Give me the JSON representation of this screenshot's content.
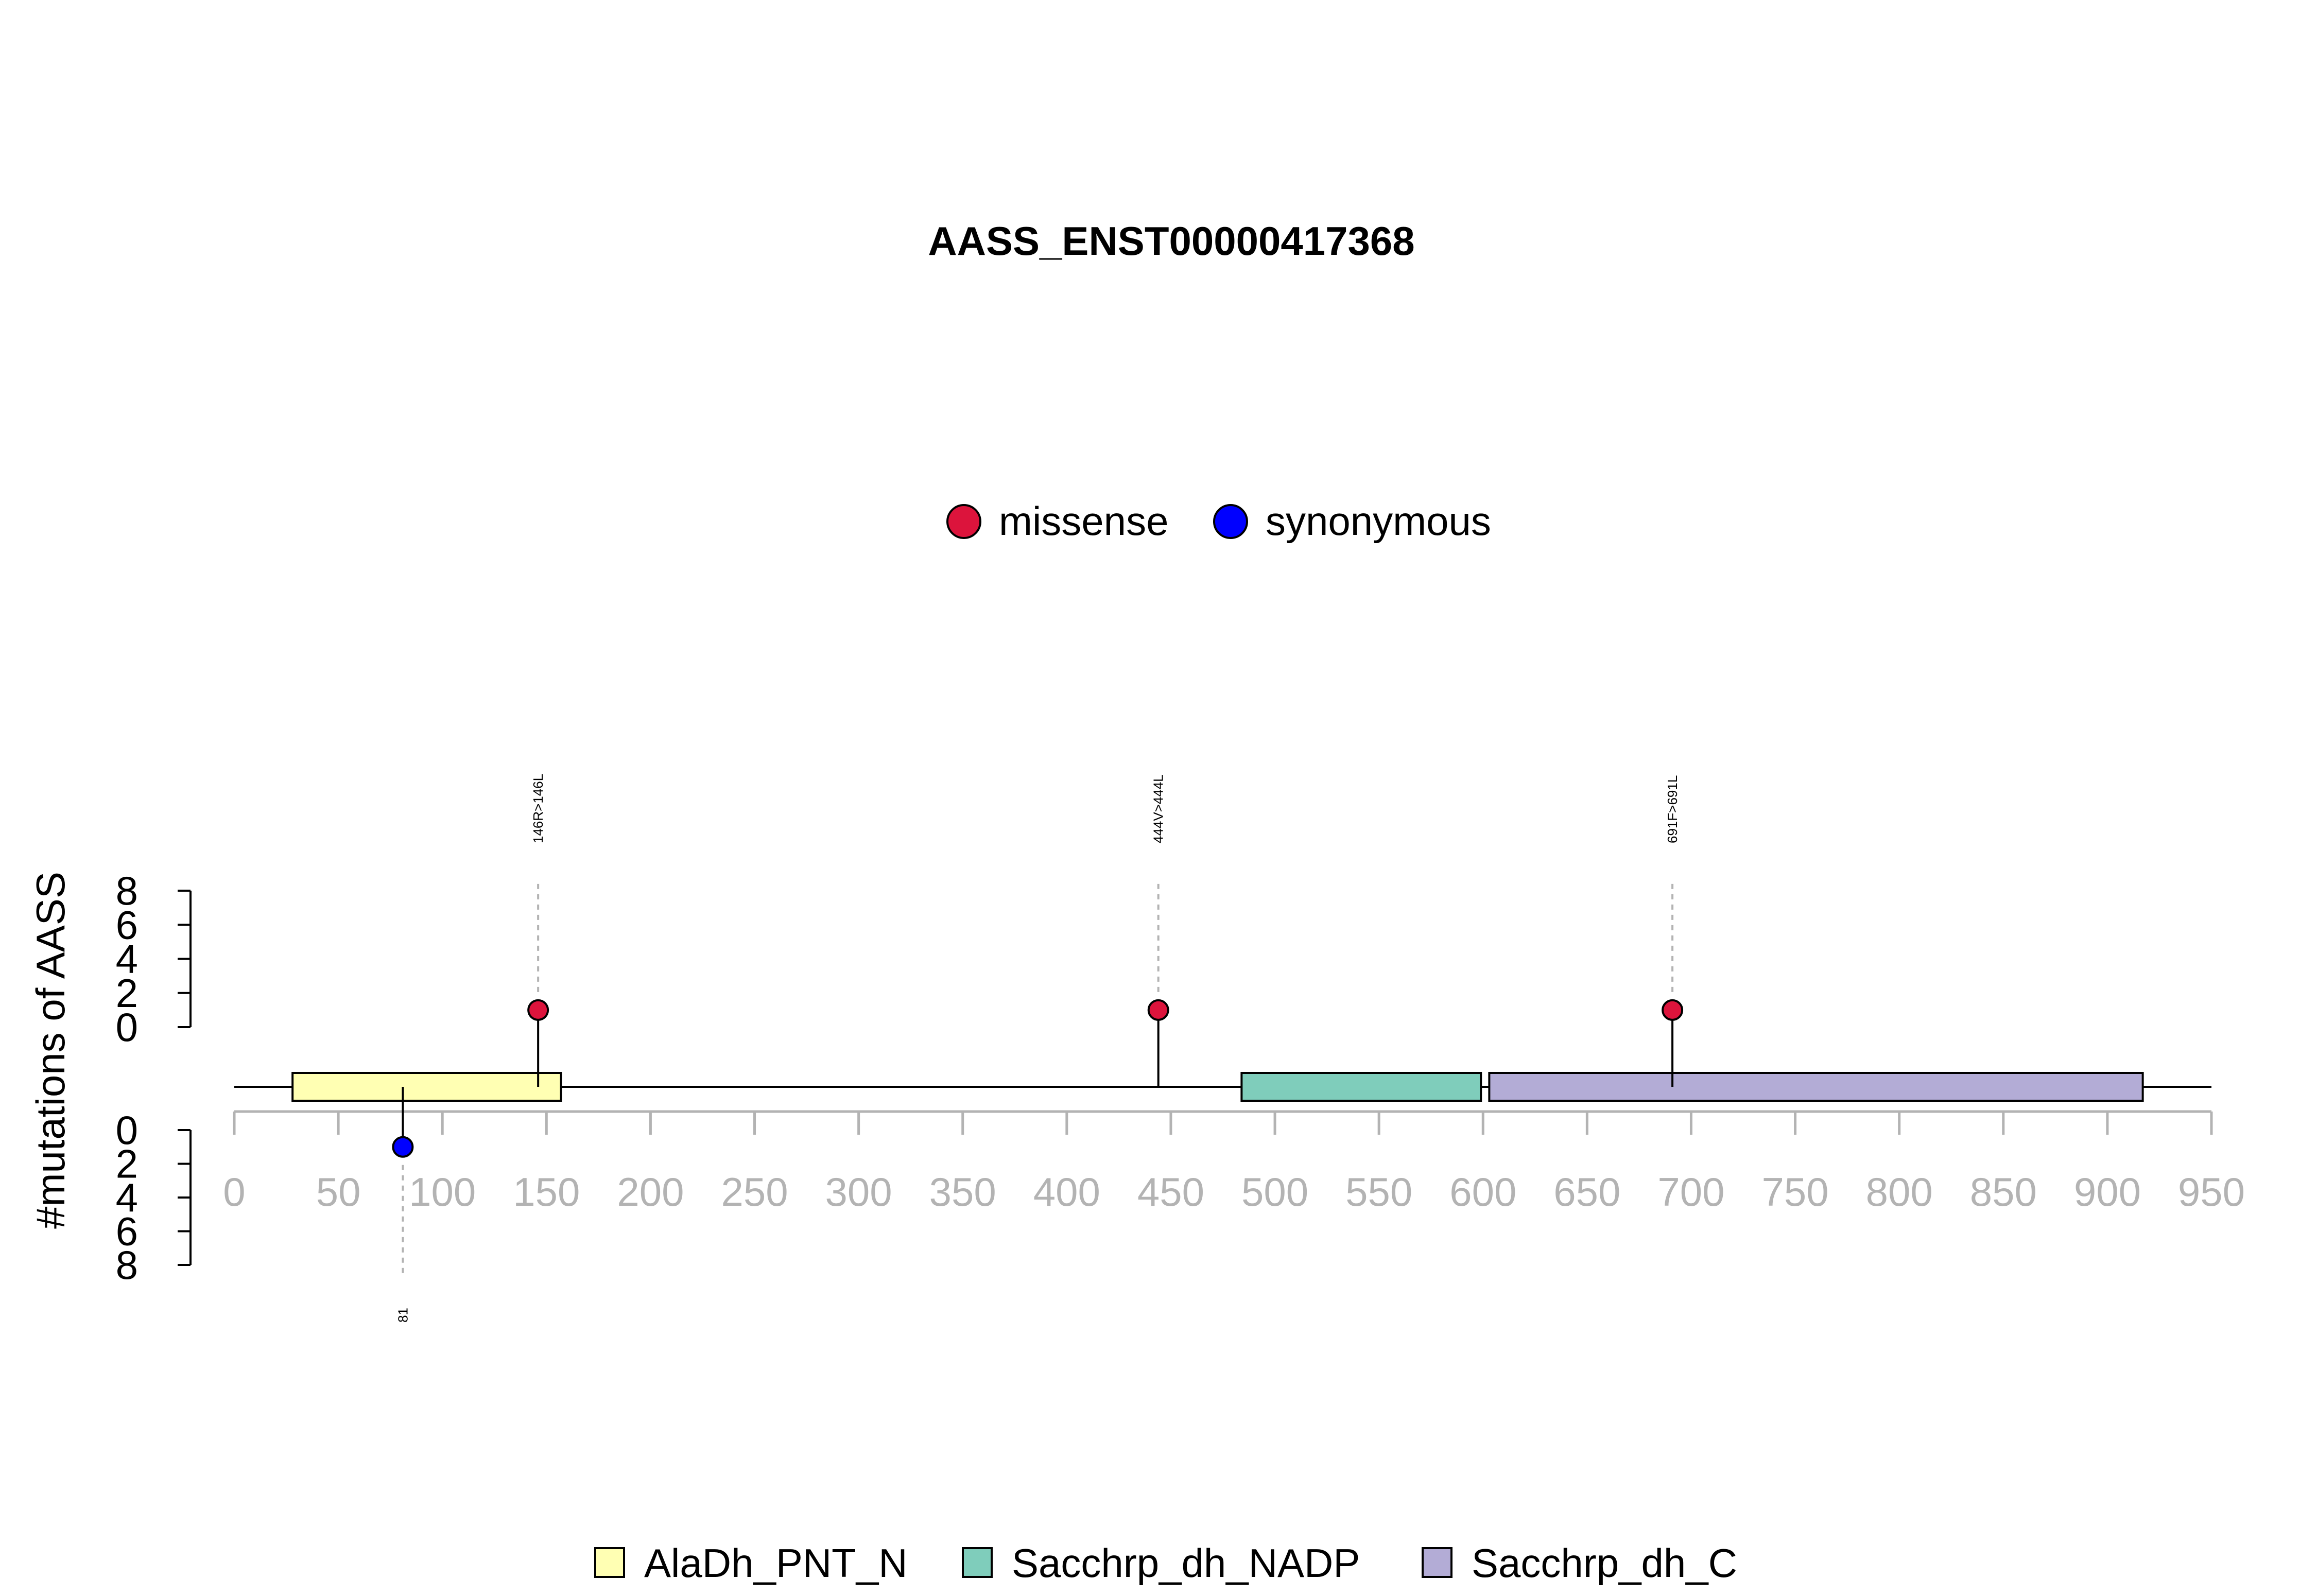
{
  "chart_data": {
    "type": "lollipop",
    "title": "AASS_ENST00000417368",
    "ylabel": "#mutations of AASS",
    "xlim": [
      0,
      950
    ],
    "x_ticks": [
      0,
      50,
      100,
      150,
      200,
      250,
      300,
      350,
      400,
      450,
      500,
      550,
      600,
      650,
      700,
      750,
      800,
      850,
      900,
      950
    ],
    "y_ticks": [
      0,
      2,
      4,
      6,
      8
    ],
    "ylim": [
      0,
      8
    ],
    "mutation_legend": [
      {
        "name": "missense",
        "color": "#dc143c"
      },
      {
        "name": "synonymous",
        "color": "#0000ff"
      }
    ],
    "mutations": [
      {
        "position": 146,
        "label": "146R>146L",
        "type": "missense",
        "count": 1,
        "strand": "top"
      },
      {
        "position": 444,
        "label": "444V>444L",
        "type": "missense",
        "count": 1,
        "strand": "top"
      },
      {
        "position": 691,
        "label": "691F>691L",
        "type": "missense",
        "count": 1,
        "strand": "top"
      },
      {
        "position": 81,
        "label": "81",
        "type": "synonymous",
        "count": 1,
        "strand": "bottom"
      }
    ],
    "domains": [
      {
        "name": "AlaDh_PNT_N",
        "start": 28,
        "end": 157,
        "color": "#ffffb3"
      },
      {
        "name": "Sacchrp_dh_NADP",
        "start": 484,
        "end": 599,
        "color": "#7fcdbb"
      },
      {
        "name": "Sacchrp_dh_C",
        "start": 603,
        "end": 917,
        "color": "#b3acd6"
      }
    ]
  }
}
